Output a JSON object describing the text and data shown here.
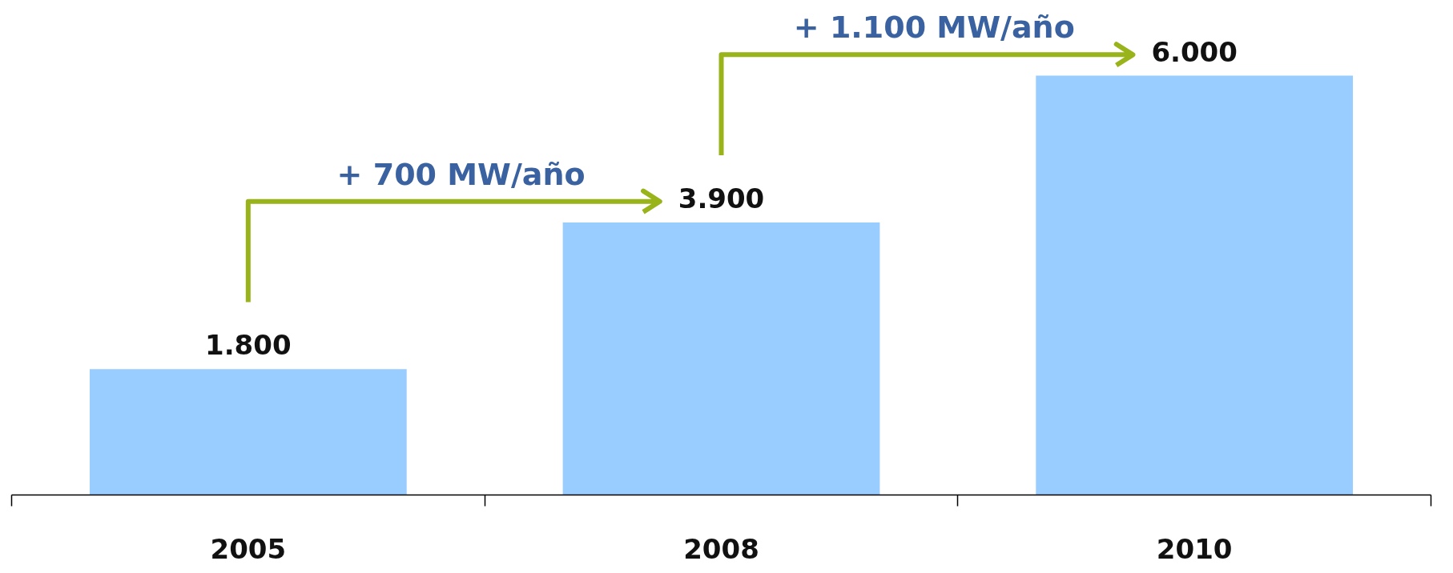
{
  "chart_data": {
    "type": "bar",
    "categories": [
      "2005",
      "2008",
      "2010"
    ],
    "values": [
      1800,
      3900,
      6000
    ],
    "color": "#99ccff",
    "value_labels": [
      "1.800",
      "3.900",
      "6.000"
    ],
    "annotations": [
      "+ 700 MW/año",
      "+ 1.100 MW/año"
    ],
    "grid": false
  }
}
